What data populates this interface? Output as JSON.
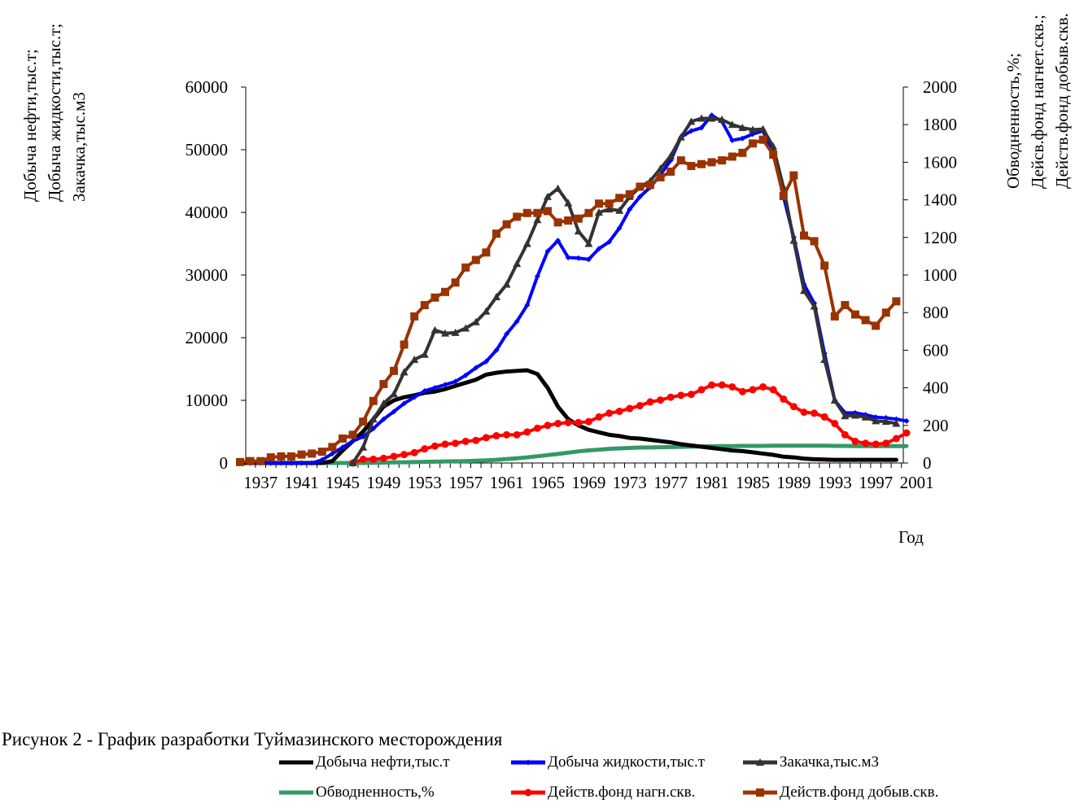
{
  "chart_data": {
    "type": "line",
    "title": "",
    "caption": "Рисунок 2 - График разработки Туймазинского месторождения",
    "xlabel": "Год",
    "ylabel_left": [
      "Добыча нефти,тыс.т;",
      "Добыча жидкости,тыс.т;",
      "Закачка,тыс.м3"
    ],
    "ylabel_right": [
      "Обводненность,%;",
      "Дейсв.фонд нагнет.скв.;",
      "Действ.фонд добыв.скв."
    ],
    "x_range": [
      1935,
      2001
    ],
    "x_tick_labels": [
      "1937",
      "1941",
      "1945",
      "1949",
      "1953",
      "1957",
      "1961",
      "1965",
      "1969",
      "1973",
      "1977",
      "1981",
      "1985",
      "1989",
      "1993",
      "1997",
      "2001"
    ],
    "ylim_left": [
      0,
      60000
    ],
    "ylim_right": [
      0,
      2000
    ],
    "y_ticks_left": [
      "0",
      "10000",
      "20000",
      "30000",
      "40000",
      "50000",
      "60000"
    ],
    "y_ticks_right": [
      "0",
      "200",
      "400",
      "600",
      "800",
      "1000",
      "1200",
      "1400",
      "1600",
      "1800",
      "2000"
    ],
    "legend_placement": "bottom",
    "series": [
      {
        "name": "Добыча нефти,тыс.т",
        "axis": "left",
        "color": "#000000",
        "marker": "none",
        "start_year": 1935,
        "values": [
          0,
          0,
          0,
          0,
          0,
          0,
          0,
          0,
          0,
          300,
          2000,
          3500,
          5000,
          7000,
          9000,
          10000,
          10500,
          10800,
          11200,
          11400,
          11800,
          12300,
          12800,
          13300,
          14100,
          14400,
          14600,
          14700,
          14800,
          14200,
          12000,
          9000,
          7000,
          6000,
          5300,
          4900,
          4500,
          4300,
          4000,
          3900,
          3700,
          3500,
          3300,
          3000,
          2800,
          2600,
          2400,
          2200,
          2000,
          1900,
          1700,
          1500,
          1300,
          1000,
          900,
          700,
          600,
          550,
          500,
          500,
          500,
          500,
          500,
          500,
          500
        ]
      },
      {
        "name": "Добыча жидкости,тыс.т",
        "axis": "left",
        "color": "#0000FF",
        "marker": "diamond",
        "start_year": 1936,
        "values": [
          0,
          0,
          0,
          0,
          0,
          0,
          0,
          500,
          1500,
          2500,
          3500,
          4200,
          5500,
          7000,
          8200,
          9500,
          10500,
          11500,
          12000,
          12500,
          13000,
          14000,
          15200,
          16200,
          18000,
          20600,
          22600,
          25200,
          29800,
          33800,
          35500,
          32800,
          32700,
          32500,
          34200,
          35300,
          37500,
          40500,
          42500,
          44000,
          46000,
          48300,
          52000,
          53000,
          53500,
          55500,
          54500,
          51500,
          51800,
          52500,
          53000,
          49500,
          42500,
          36000,
          28500,
          25500,
          17500,
          10000,
          8000,
          8000,
          7700,
          7300,
          7200,
          7000,
          6700
        ]
      },
      {
        "name": "Закачка,тыс.м3",
        "axis": "left",
        "color": "#333333",
        "marker": "triangle",
        "start_year": 1946,
        "values": [
          0,
          2500,
          7000,
          9500,
          11000,
          14500,
          16500,
          17300,
          21200,
          20700,
          20800,
          21500,
          22500,
          24200,
          26500,
          28500,
          31800,
          35000,
          38800,
          42500,
          43800,
          41500,
          37000,
          35000,
          40000,
          40500,
          40300,
          42500,
          44000,
          45000,
          47000,
          49000,
          52000,
          54500,
          55000,
          55000,
          54800,
          54000,
          53500,
          53200,
          53300,
          50500,
          44000,
          35500,
          27500,
          25000,
          16500,
          10000,
          7500,
          7600,
          7300,
          6700,
          6600,
          6300
        ]
      },
      {
        "name": "Обводненность,%",
        "axis": "right",
        "color": "#339966",
        "marker": "none",
        "start_year": 1937,
        "values": [
          0,
          0,
          0,
          0,
          0,
          0,
          0,
          0,
          0,
          0,
          0,
          1,
          2,
          3,
          4,
          5,
          6,
          7,
          8,
          9,
          10,
          12,
          14,
          17,
          21,
          25,
          30,
          36,
          42,
          48,
          55,
          62,
          67,
          71,
          75,
          78,
          80,
          82,
          83,
          84,
          85,
          86,
          87,
          88,
          89,
          90,
          90,
          91,
          91,
          91,
          92,
          92,
          92,
          92,
          92,
          92,
          91,
          91,
          90,
          90,
          90,
          90,
          90,
          90
        ]
      },
      {
        "name": "Действ.фонд нагн.скв.",
        "axis": "right",
        "color": "#FF0000",
        "marker": "circle",
        "start_year": 1946,
        "values": [
          0,
          20,
          20,
          25,
          35,
          45,
          55,
          75,
          90,
          100,
          105,
          115,
          120,
          135,
          145,
          150,
          150,
          165,
          185,
          200,
          210,
          215,
          215,
          220,
          245,
          265,
          275,
          290,
          305,
          325,
          335,
          350,
          360,
          365,
          390,
          415,
          415,
          405,
          380,
          390,
          405,
          390,
          340,
          300,
          270,
          265,
          245,
          210,
          150,
          115,
          105,
          100,
          105,
          130,
          160
        ]
      },
      {
        "name": "Действ.фонд добыв.скв.",
        "axis": "right",
        "color": "#993300",
        "marker": "square",
        "start_year": 1935,
        "values": [
          5,
          10,
          10,
          30,
          35,
          35,
          45,
          50,
          60,
          85,
          130,
          150,
          220,
          330,
          420,
          490,
          630,
          780,
          840,
          880,
          910,
          960,
          1040,
          1080,
          1120,
          1220,
          1270,
          1310,
          1330,
          1330,
          1340,
          1280,
          1290,
          1300,
          1330,
          1380,
          1380,
          1410,
          1430,
          1470,
          1480,
          1520,
          1550,
          1610,
          1580,
          1590,
          1600,
          1610,
          1630,
          1650,
          1700,
          1720,
          1640,
          1420,
          1530,
          1210,
          1180,
          1050,
          780,
          840,
          790,
          760,
          730,
          800,
          860
        ]
      }
    ]
  }
}
